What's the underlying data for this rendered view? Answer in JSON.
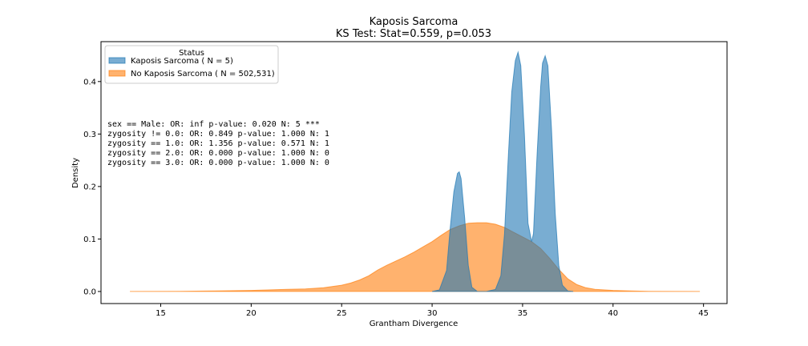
{
  "chart_data": {
    "type": "area",
    "title": "Kaposis Sarcoma",
    "subtitle": "KS Test: Stat=0.559, p=0.053",
    "xlabel": "Grantham Divergence",
    "ylabel": "Density",
    "xlim": [
      11.7,
      46.3
    ],
    "ylim": [
      -0.023,
      0.476
    ],
    "xticks": [
      "15",
      "20",
      "25",
      "30",
      "35",
      "40",
      "45"
    ],
    "xtick_values": [
      15,
      20,
      25,
      30,
      35,
      40,
      45
    ],
    "yticks": [
      "0.0",
      "0.1",
      "0.2",
      "0.3",
      "0.4"
    ],
    "ytick_values": [
      0.0,
      0.1,
      0.2,
      0.3,
      0.4
    ],
    "grid": false,
    "legend": {
      "title": "Status",
      "placement": "top-left",
      "entries": [
        "Kaposis Sarcoma ( N = 5)",
        "No Kaposis Sarcoma ( N = 502,531)"
      ]
    },
    "annotations": [
      "sex == Male: OR: inf p-value: 0.020 N: 5 ***",
      "zygosity != 0.0: OR: 0.849 p-value: 1.000 N: 1",
      "zygosity == 1.0: OR: 1.356 p-value: 0.571 N: 1",
      "zygosity == 2.0: OR: 0.000 p-value: 1.000 N: 0",
      "zygosity == 3.0: OR: 0.000 p-value: 1.000 N: 0"
    ],
    "series": [
      {
        "name": "Kaposis Sarcoma ( N = 5)",
        "color": "#1f77b4",
        "x": [
          30.0,
          30.4,
          30.8,
          31.0,
          31.2,
          31.4,
          31.5,
          31.6,
          31.8,
          32.0,
          32.2,
          32.5,
          33.0,
          33.5,
          33.8,
          34.0,
          34.2,
          34.4,
          34.6,
          34.75,
          34.9,
          35.1,
          35.3,
          35.5,
          35.6,
          35.8,
          36.0,
          36.1,
          36.25,
          36.4,
          36.6,
          36.8,
          37.0,
          37.2,
          37.5,
          37.8
        ],
        "y": [
          0.0,
          0.003,
          0.04,
          0.12,
          0.19,
          0.225,
          0.228,
          0.215,
          0.14,
          0.05,
          0.008,
          0.0,
          0.0,
          0.004,
          0.03,
          0.11,
          0.25,
          0.38,
          0.44,
          0.456,
          0.43,
          0.3,
          0.13,
          0.095,
          0.11,
          0.26,
          0.39,
          0.435,
          0.449,
          0.43,
          0.31,
          0.15,
          0.05,
          0.012,
          0.001,
          0.0
        ]
      },
      {
        "name": "No Kaposis Sarcoma ( N = 502,531)",
        "color": "#ff7f0e",
        "x": [
          13.3,
          16.0,
          18.0,
          20.0,
          22.0,
          23.0,
          24.0,
          25.0,
          25.5,
          26.0,
          26.5,
          27.0,
          27.5,
          28.0,
          28.5,
          29.0,
          29.5,
          30.0,
          30.5,
          31.0,
          31.5,
          32.0,
          32.5,
          33.0,
          33.5,
          34.0,
          34.5,
          35.0,
          35.5,
          36.0,
          36.5,
          37.0,
          37.5,
          38.0,
          38.5,
          39.0,
          40.0,
          41.0,
          42.0,
          44.8
        ],
        "y": [
          0.0,
          0.0003,
          0.001,
          0.002,
          0.004,
          0.005,
          0.007,
          0.012,
          0.016,
          0.022,
          0.03,
          0.041,
          0.05,
          0.058,
          0.066,
          0.075,
          0.085,
          0.095,
          0.107,
          0.118,
          0.125,
          0.13,
          0.131,
          0.131,
          0.128,
          0.122,
          0.113,
          0.104,
          0.095,
          0.082,
          0.063,
          0.042,
          0.024,
          0.013,
          0.007,
          0.004,
          0.002,
          0.001,
          0.0004,
          0.0
        ]
      }
    ]
  }
}
